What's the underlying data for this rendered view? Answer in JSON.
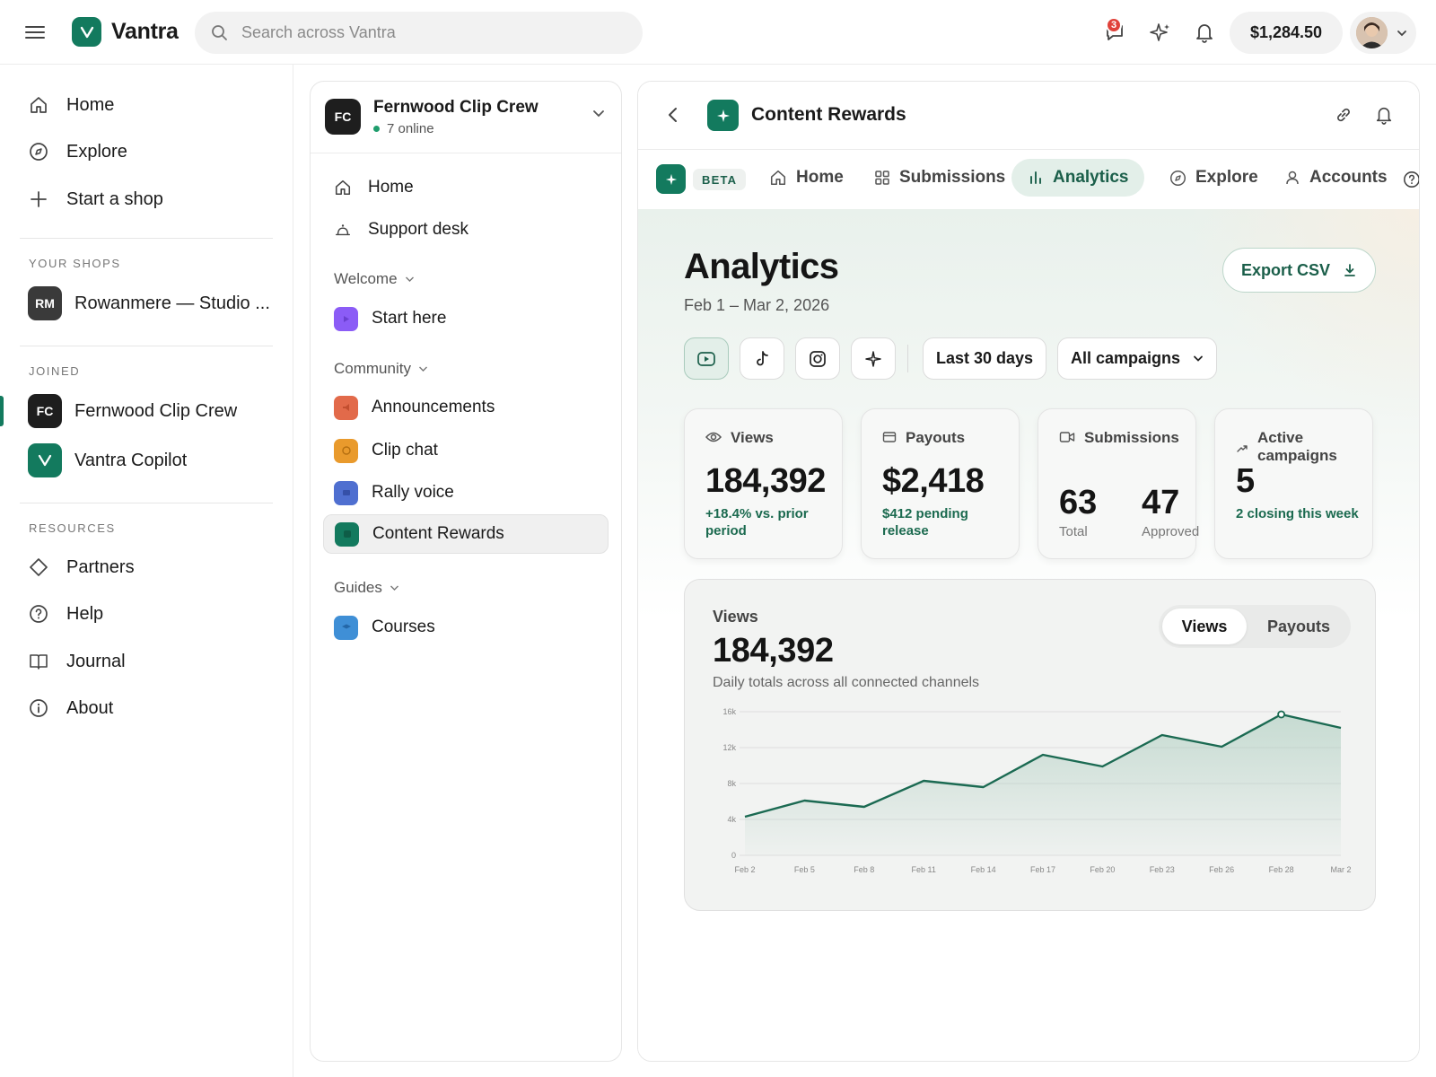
{
  "topbar": {
    "brand": "Vantra",
    "search_placeholder": "Search across Vantra",
    "chat_badge": "3",
    "balance": "$1,284.50"
  },
  "sidebar": {
    "nav": [
      {
        "label": "Home",
        "icon": "home-icon"
      },
      {
        "label": "Explore",
        "icon": "compass-icon"
      },
      {
        "label": "Start a shop",
        "icon": "plus-icon"
      }
    ],
    "your_shops_label": "YOUR SHOPS",
    "shops": [
      {
        "initials": "RM",
        "label": "Rowanmere — Studio ...",
        "color": "#3a3a3a"
      }
    ],
    "joined_label": "JOINED",
    "joined": [
      {
        "initials": "FC",
        "label": "Fernwood Clip Crew",
        "color": "#1e1e1e"
      },
      {
        "initials": "V",
        "label": "Vantra Copilot",
        "color": "#137a5e"
      }
    ],
    "resources_label": "RESOURCES",
    "resources": [
      {
        "label": "Partners",
        "icon": "tag-icon"
      },
      {
        "label": "Help",
        "icon": "help-circle-icon"
      },
      {
        "label": "Journal",
        "icon": "book-icon"
      },
      {
        "label": "About",
        "icon": "info-icon"
      }
    ]
  },
  "community": {
    "initials": "FC",
    "name": "Fernwood Clip Crew",
    "online": "7 online",
    "top_items": [
      {
        "label": "Home",
        "icon": "home-icon"
      },
      {
        "label": "Support desk",
        "icon": "support-icon"
      }
    ],
    "groups": [
      {
        "label": "Welcome",
        "items": [
          {
            "label": "Start here",
            "color": "#8b5cf6"
          }
        ]
      },
      {
        "label": "Community",
        "items": [
          {
            "label": "Announcements",
            "color": "#e26a4a"
          },
          {
            "label": "Clip chat",
            "color": "#e99a2c"
          },
          {
            "label": "Rally voice",
            "color": "#4f6fd0"
          },
          {
            "label": "Content Rewards",
            "color": "#137a5e"
          }
        ]
      },
      {
        "label": "Guides",
        "items": [
          {
            "label": "Courses",
            "color": "#3f8fd6"
          }
        ]
      }
    ]
  },
  "main": {
    "title": "Content Rewards",
    "beta": "BETA",
    "tabs": [
      {
        "label": "Home",
        "icon": "home-icon"
      },
      {
        "label": "Submissions",
        "icon": "grid-icon"
      },
      {
        "label": "Analytics",
        "icon": "bar-chart-icon"
      },
      {
        "label": "Explore",
        "icon": "compass-icon"
      },
      {
        "label": "Accounts",
        "icon": "user-icon"
      }
    ],
    "page_title": "Analytics",
    "date_range": "Feb 1 – Mar 2, 2026",
    "export_label": "Export CSV",
    "filters": {
      "platforms": [
        "youtube-icon",
        "tiktok-icon",
        "instagram-icon",
        "sparkle-icon"
      ],
      "period": "Last 30 days",
      "campaigns": "All campaigns"
    },
    "kpis": {
      "views": {
        "label": "Views",
        "value": "184,392",
        "sub": "+18.4% vs. prior period"
      },
      "payouts": {
        "label": "Payouts",
        "value": "$2,418",
        "sub": "$412 pending release"
      },
      "submissions": {
        "label": "Submissions",
        "total": "63",
        "total_label": "Total",
        "approved": "47",
        "approved_label": "Approved"
      },
      "campaigns": {
        "label": "Active campaigns",
        "value": "5",
        "sub": "2 closing this week"
      }
    },
    "chart_card": {
      "label": "Views",
      "total": "184,392",
      "description": "Daily totals across all connected channels",
      "toggle": [
        "Views",
        "Payouts"
      ]
    }
  },
  "chart_data": {
    "type": "area",
    "x": [
      "Feb 2",
      "Feb 5",
      "Feb 8",
      "Feb 11",
      "Feb 14",
      "Feb 17",
      "Feb 20",
      "Feb 23",
      "Feb 26",
      "Feb 28",
      "Mar 2"
    ],
    "series": [
      {
        "values": [
          4300,
          6100,
          5400,
          8300,
          7600,
          11200,
          9900,
          13400,
          12100,
          15700,
          14200
        ]
      }
    ],
    "yticks": [
      "0",
      "4k",
      "8k",
      "12k",
      "16k"
    ],
    "ylim": [
      0,
      16000
    ],
    "grid": true,
    "highlight_index": 9,
    "colors": {
      "line": "#1b6a52",
      "fill": "#a9cbbc"
    }
  }
}
